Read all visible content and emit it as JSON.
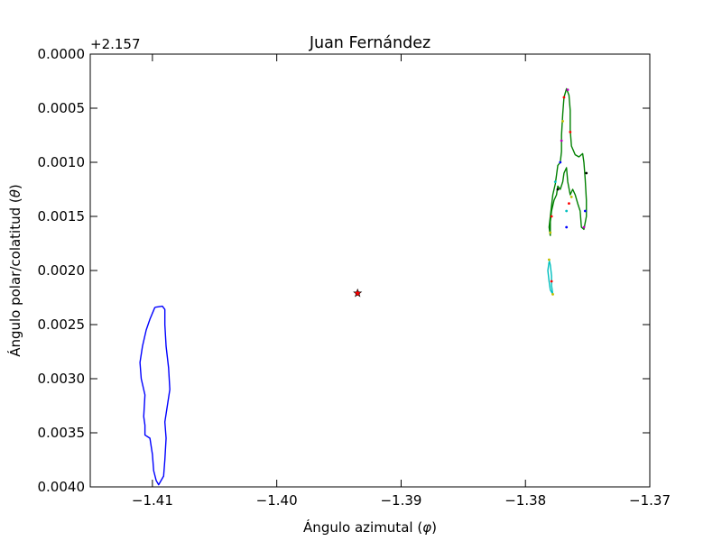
{
  "chart_data": {
    "type": "line",
    "title": "Juan Fernández",
    "xlabel_prefix": "Ángulo azimutal (",
    "xlabel_symbol": "φ",
    "xlabel_suffix": ")",
    "ylabel_prefix": "Ángulo polar/colatitud (",
    "ylabel_symbol": "θ",
    "ylabel_suffix": ")",
    "y_offset_label": "+2.157",
    "xlim": [
      -1.415,
      -1.37
    ],
    "ylim": [
      0.0,
      0.004
    ],
    "y_inverted": true,
    "grid": false,
    "xticks": [
      -1.41,
      -1.4,
      -1.39,
      -1.38,
      -1.37
    ],
    "xtick_labels": [
      "−1.41",
      "−1.40",
      "−1.39",
      "−1.38",
      "−1.37"
    ],
    "yticks": [
      0.0,
      0.0005,
      0.001,
      0.0015,
      0.002,
      0.0025,
      0.003,
      0.0035,
      0.004
    ],
    "ytick_labels": [
      "0.0000",
      "0.0005",
      "0.0010",
      "0.0015",
      "0.0020",
      "0.0025",
      "0.0030",
      "0.0035",
      "0.0040"
    ],
    "series": [
      {
        "color": "#0000ff",
        "points": [
          [
            -1.4098,
            0.00234
          ],
          [
            -1.4092,
            0.00233
          ],
          [
            -1.409,
            0.00236
          ],
          [
            -1.409,
            0.0025
          ],
          [
            -1.4089,
            0.0027
          ],
          [
            -1.4087,
            0.0029
          ],
          [
            -1.4086,
            0.0031
          ],
          [
            -1.4088,
            0.00325
          ],
          [
            -1.409,
            0.0034
          ],
          [
            -1.4089,
            0.00355
          ],
          [
            -1.409,
            0.00375
          ],
          [
            -1.4091,
            0.0039
          ],
          [
            -1.4095,
            0.00398
          ],
          [
            -1.4097,
            0.00394
          ],
          [
            -1.4099,
            0.00385
          ],
          [
            -1.41,
            0.0037
          ],
          [
            -1.4102,
            0.00355
          ],
          [
            -1.4106,
            0.00352
          ],
          [
            -1.4106,
            0.00343
          ],
          [
            -1.4107,
            0.00335
          ],
          [
            -1.4106,
            0.00315
          ],
          [
            -1.4109,
            0.003
          ],
          [
            -1.411,
            0.00285
          ],
          [
            -1.4108,
            0.0027
          ],
          [
            -1.4105,
            0.00255
          ],
          [
            -1.4102,
            0.00245
          ],
          [
            -1.4098,
            0.00234
          ]
        ]
      },
      {
        "color": "#008000",
        "points": [
          [
            -1.378,
            0.00168
          ],
          [
            -1.3781,
            0.0016
          ],
          [
            -1.378,
            0.0015
          ],
          [
            -1.3779,
            0.0014
          ],
          [
            -1.3778,
            0.0013
          ],
          [
            -1.3776,
            0.0012
          ],
          [
            -1.3774,
            0.00103
          ],
          [
            -1.3772,
            0.001
          ],
          [
            -1.3771,
            0.0009
          ],
          [
            -1.3771,
            0.00075
          ],
          [
            -1.377,
            0.00055
          ],
          [
            -1.3769,
            0.0004
          ],
          [
            -1.3767,
            0.00032
          ],
          [
            -1.3765,
            0.00038
          ],
          [
            -1.3764,
            0.00052
          ],
          [
            -1.3764,
            0.0007
          ],
          [
            -1.3763,
            0.00085
          ],
          [
            -1.376,
            0.00093
          ],
          [
            -1.3757,
            0.00095
          ],
          [
            -1.3754,
            0.00092
          ],
          [
            -1.3753,
            0.001
          ],
          [
            -1.3752,
            0.00115
          ],
          [
            -1.3751,
            0.00135
          ],
          [
            -1.3751,
            0.0015
          ],
          [
            -1.3753,
            0.00162
          ],
          [
            -1.3755,
            0.0016
          ],
          [
            -1.3756,
            0.00145
          ],
          [
            -1.3758,
            0.00138
          ],
          [
            -1.376,
            0.0013
          ],
          [
            -1.3762,
            0.00125
          ],
          [
            -1.3764,
            0.0013
          ],
          [
            -1.3766,
            0.00118
          ],
          [
            -1.3767,
            0.00105
          ],
          [
            -1.3769,
            0.0011
          ],
          [
            -1.377,
            0.00118
          ],
          [
            -1.3772,
            0.00125
          ],
          [
            -1.3774,
            0.00122
          ],
          [
            -1.3775,
            0.0013
          ],
          [
            -1.3777,
            0.00135
          ],
          [
            -1.3779,
            0.00145
          ],
          [
            -1.378,
            0.00155
          ],
          [
            -1.378,
            0.00168
          ]
        ]
      },
      {
        "color": "#00bfbf",
        "points": [
          [
            -1.3781,
            0.0019
          ],
          [
            -1.378,
            0.00195
          ],
          [
            -1.3779,
            0.00205
          ],
          [
            -1.3779,
            0.00214
          ],
          [
            -1.3778,
            0.00222
          ],
          [
            -1.378,
            0.00218
          ],
          [
            -1.3781,
            0.0021
          ],
          [
            -1.3782,
            0.002
          ],
          [
            -1.3781,
            0.00192
          ]
        ]
      }
    ],
    "markers": [
      {
        "x": -1.3935,
        "y": 0.00221,
        "color": "#ff0000",
        "symbol": "star"
      }
    ],
    "scatter_dots": {
      "colors": [
        "#ff0000",
        "#bfbf00",
        "#bf00bf",
        "#0000ff",
        "#000000",
        "#00bfbf",
        "#ff0000",
        "#bfbf00"
      ],
      "points": [
        [
          -1.3769,
          0.0004
        ],
        [
          -1.377,
          0.00062
        ],
        [
          -1.3771,
          0.0008
        ],
        [
          -1.3772,
          0.001
        ],
        [
          -1.3774,
          0.00125
        ],
        [
          -1.3776,
          0.00118
        ],
        [
          -1.3779,
          0.0015
        ],
        [
          -1.378,
          0.00165
        ],
        [
          -1.3765,
          0.00138
        ],
        [
          -1.3763,
          0.00132
        ],
        [
          -1.3753,
          0.0016
        ],
        [
          -1.3752,
          0.00145
        ],
        [
          -1.3751,
          0.0011
        ],
        [
          -1.3767,
          0.00145
        ],
        [
          -1.3764,
          0.00072
        ],
        [
          -1.3781,
          0.0019
        ],
        [
          -1.3779,
          0.0021
        ],
        [
          -1.3778,
          0.00222
        ],
        [
          -1.3766,
          0.00033
        ],
        [
          -1.3767,
          0.0016
        ]
      ]
    }
  }
}
